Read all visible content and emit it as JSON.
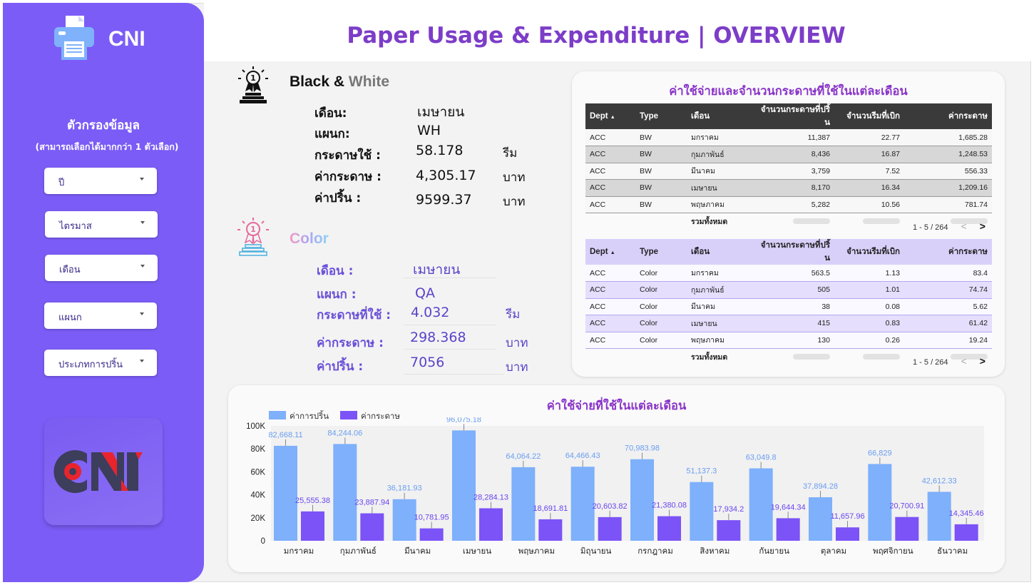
{
  "app": {
    "name": "CNI",
    "title": "Paper Usage & Expenditure | OVERVIEW",
    "logo_text": "CNI"
  },
  "sidebar": {
    "filter_title": "ตัวกรองข้อมูล",
    "filter_subtitle": "(สามารถเลือกได้มากกว่า 1 ตัวเลือก)",
    "filters": [
      "ปี",
      "ไตรมาส",
      "เดือน",
      "แผนก",
      "ประเภทการปริ้น"
    ]
  },
  "bw": {
    "title_a": "Black &",
    "title_b": "White",
    "month_label": "เดือน:",
    "month_value": "เมษายน",
    "dept_label": "แผนก:",
    "dept_value": "WH",
    "paper_label": "กระดาษใช้ :",
    "paper_value": "58.178",
    "paper_unit": "รีม",
    "cost_label": "ค่ากระดาษ :",
    "cost_value": "4,305.17",
    "cost_unit": "บาท",
    "print_label": "ค่าปริ้น :",
    "print_value": "9599.37",
    "print_unit": "บาท"
  },
  "color": {
    "title": "Color",
    "month_label": "เดือน :",
    "month_value": "เมษายน",
    "dept_label": "แผนก :",
    "dept_value": "QA",
    "paper_label": "กระดาษที่ใช้ :",
    "paper_value": "4.032",
    "paper_unit": "รีม",
    "cost_label": "ค่ากระดาษ :",
    "cost_value": "298.368",
    "cost_unit": "บาท",
    "print_label": "ค่าปริ้น :",
    "print_value": "7056",
    "print_unit": "บาท"
  },
  "tables": {
    "title": "ค่าใช้จ่ายและจำนวนกระดาษที่ใช้ในแต่ละเดือน",
    "headers": [
      "Dept",
      "Type",
      "เดือน",
      "จำนวนกระดาษที่ปริ้น",
      "จำนวนรีมที่เบิก",
      "ค่ากระดาษ"
    ],
    "sort_indicator": "▲",
    "total_label": "รวมทั้งหมด",
    "bw_rows": [
      [
        "ACC",
        "BW",
        "มกราคม",
        "11,387",
        "22.77",
        "1,685.28"
      ],
      [
        "ACC",
        "BW",
        "กุมภาพันธ์",
        "8,436",
        "16.87",
        "1,248.53"
      ],
      [
        "ACC",
        "BW",
        "มีนาคม",
        "3,759",
        "7.52",
        "556.33"
      ],
      [
        "ACC",
        "BW",
        "เมษายน",
        "8,170",
        "16.34",
        "1,209.16"
      ],
      [
        "ACC",
        "BW",
        "พฤษภาคม",
        "5,282",
        "10.56",
        "781.74"
      ]
    ],
    "color_rows": [
      [
        "ACC",
        "Color",
        "มกราคม",
        "563.5",
        "1.13",
        "83.4"
      ],
      [
        "ACC",
        "Color",
        "กุมภาพันธ์",
        "505",
        "1.01",
        "74.74"
      ],
      [
        "ACC",
        "Color",
        "มีนาคม",
        "38",
        "0.08",
        "5.62"
      ],
      [
        "ACC",
        "Color",
        "เมษายน",
        "415",
        "0.83",
        "61.42"
      ],
      [
        "ACC",
        "Color",
        "พฤษภาคม",
        "130",
        "0.26",
        "19.24"
      ]
    ],
    "bw_pager": "1 - 5 / 264",
    "color_pager": "1 - 5 / 264",
    "pager_prev": "<",
    "pager_next": ">"
  },
  "chart_data": {
    "type": "bar",
    "title": "ค่าใช้จ่ายที่ใช้ในแต่ละเดือน",
    "categories": [
      "มกราคม",
      "กุมภาพันธ์",
      "มีนาคม",
      "เมษายน",
      "พฤษภาคม",
      "มิถุนายน",
      "กรกฎาคม",
      "สิงหาคม",
      "กันยายน",
      "ตุลาคม",
      "พฤศจิกายน",
      "ธันวาคม"
    ],
    "series": [
      {
        "name": "ค่าการปริ้น",
        "color": "#7eb0fb",
        "values": [
          82668.11,
          84244.06,
          36181.93,
          96075.18,
          64064.22,
          64466.43,
          70983.98,
          51137.3,
          63049.8,
          37894.28,
          66829,
          42612.33
        ],
        "labels": [
          "82,668.11",
          "84,244.06",
          "36,181.93",
          "96,075.18",
          "64,064.22",
          "64,466.43",
          "70,983.98",
          "51,137.3",
          "63,049.8",
          "37,894.28",
          "66,829",
          "42,612.33"
        ]
      },
      {
        "name": "ค่ากระดาษ",
        "color": "#7b53f7",
        "values": [
          25555.38,
          23887.94,
          10781.95,
          28284.13,
          18691.81,
          20603.82,
          21380.08,
          17934.2,
          19644.34,
          11657.96,
          20700.91,
          14345.46
        ],
        "labels": [
          "25,555.38",
          "23,887.94",
          "10,781.95",
          "28,284.13",
          "18,691.81",
          "20,603.82",
          "21,380.08",
          "17,934.2",
          "19,644.34",
          "11,657.96",
          "20,700.91",
          "14,345.46"
        ]
      }
    ],
    "ylim": [
      0,
      100000
    ],
    "yticks": [
      "0",
      "20K",
      "40K",
      "60K",
      "80K",
      "100K"
    ],
    "ytick_values": [
      0,
      20000,
      40000,
      60000,
      80000,
      100000
    ],
    "grid": false,
    "legend_position": "top-left"
  }
}
